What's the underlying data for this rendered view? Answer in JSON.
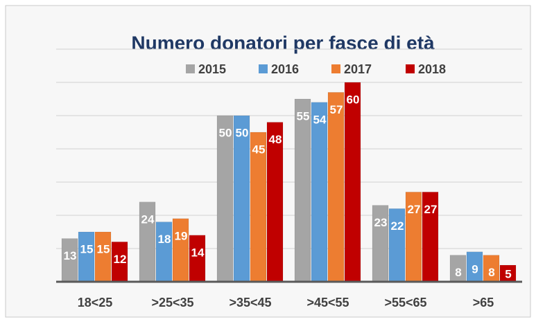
{
  "chart_data": {
    "type": "bar",
    "title": "Numero donatori per fasce di età",
    "categories": [
      "18<25",
      ">25<35",
      ">35<45",
      ">45<55",
      ">55<65",
      ">65"
    ],
    "series": [
      {
        "name": "2015",
        "color": "#a5a5a5",
        "values": [
          13,
          24,
          50,
          55,
          23,
          8
        ]
      },
      {
        "name": "2016",
        "color": "#5b9bd5",
        "values": [
          15,
          18,
          50,
          54,
          22,
          9
        ]
      },
      {
        "name": "2017",
        "color": "#ed7d31",
        "values": [
          15,
          19,
          45,
          57,
          27,
          8
        ]
      },
      {
        "name": "2018",
        "color": "#c00000",
        "values": [
          12,
          14,
          48,
          60,
          27,
          5
        ]
      }
    ],
    "ylim": [
      0,
      70
    ],
    "yticks": [
      0,
      10,
      20,
      30,
      40,
      50,
      60,
      70
    ],
    "grid": true,
    "legend": "top"
  }
}
